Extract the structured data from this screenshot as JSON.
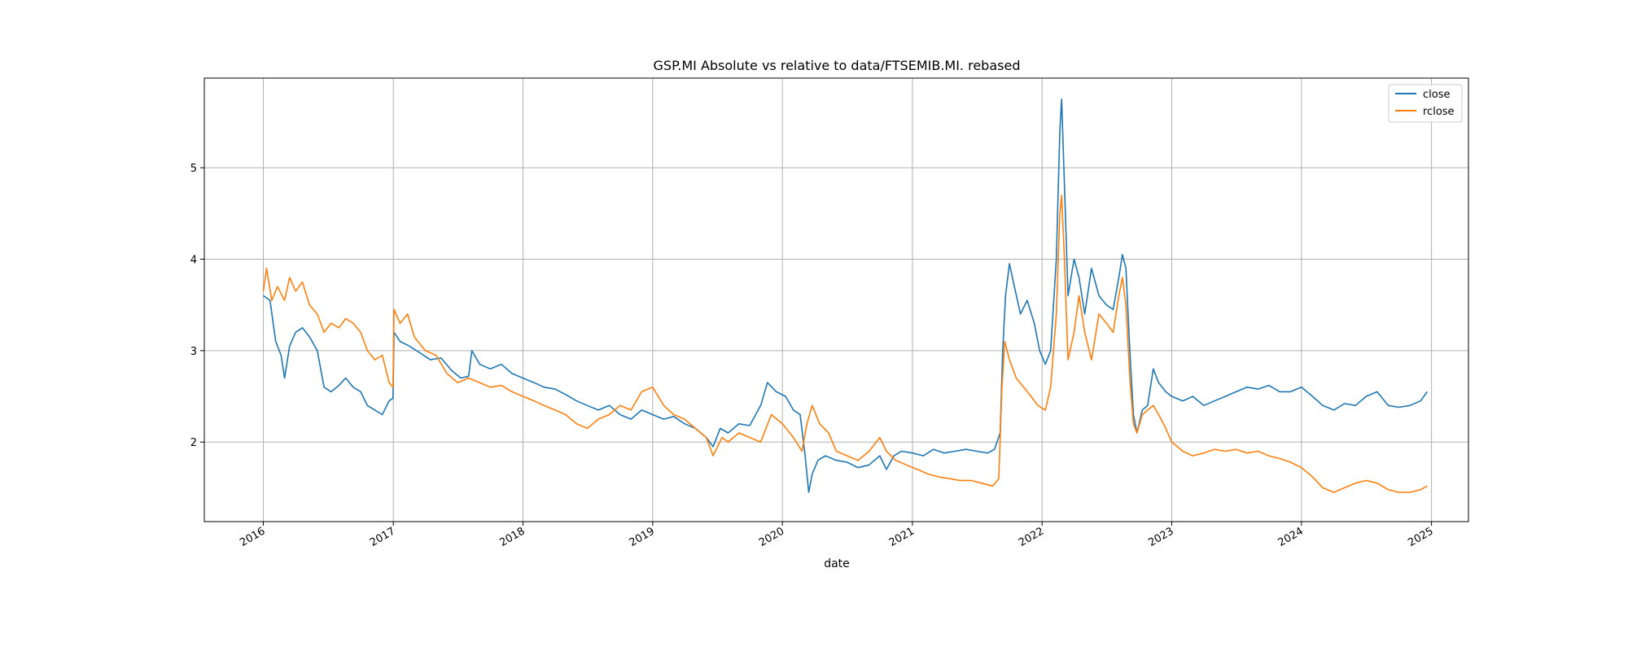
{
  "chart_data": {
    "type": "line",
    "title": "GSP.MI Absolute vs relative to data/FTSEMIB.MI. rebased",
    "xlabel": "date",
    "ylabel": "",
    "x_ticks": [
      "2016",
      "2017",
      "2018",
      "2019",
      "2020",
      "2021",
      "2022",
      "2023",
      "2024",
      "2025"
    ],
    "y_ticks": [
      "2",
      "3",
      "4",
      "5"
    ],
    "xlim": [
      "2015-07-19",
      "2025-04-15"
    ],
    "ylim": [
      1.13,
      5.98
    ],
    "grid": true,
    "legend_position": "top-right",
    "series": [
      {
        "name": "close",
        "color": "#1f77b4",
        "points": [
          [
            "2016-01-01",
            3.6
          ],
          [
            "2016-01-20",
            3.55
          ],
          [
            "2016-02-05",
            3.1
          ],
          [
            "2016-02-20",
            2.95
          ],
          [
            "2016-03-01",
            2.7
          ],
          [
            "2016-03-15",
            3.05
          ],
          [
            "2016-04-01",
            3.2
          ],
          [
            "2016-04-20",
            3.25
          ],
          [
            "2016-05-10",
            3.15
          ],
          [
            "2016-06-01",
            3.0
          ],
          [
            "2016-06-20",
            2.6
          ],
          [
            "2016-07-10",
            2.55
          ],
          [
            "2016-08-01",
            2.62
          ],
          [
            "2016-08-20",
            2.7
          ],
          [
            "2016-09-10",
            2.6
          ],
          [
            "2016-10-01",
            2.55
          ],
          [
            "2016-10-20",
            2.4
          ],
          [
            "2016-11-10",
            2.35
          ],
          [
            "2016-12-01",
            2.3
          ],
          [
            "2016-12-20",
            2.45
          ],
          [
            "2016-12-31",
            2.48
          ],
          [
            "2017-01-03",
            3.2
          ],
          [
            "2017-01-20",
            3.1
          ],
          [
            "2017-02-15",
            3.05
          ],
          [
            "2017-03-15",
            2.98
          ],
          [
            "2017-04-15",
            2.9
          ],
          [
            "2017-05-15",
            2.92
          ],
          [
            "2017-06-15",
            2.78
          ],
          [
            "2017-07-10",
            2.7
          ],
          [
            "2017-08-01",
            2.72
          ],
          [
            "2017-08-10",
            3.0
          ],
          [
            "2017-09-01",
            2.85
          ],
          [
            "2017-10-01",
            2.8
          ],
          [
            "2017-11-01",
            2.85
          ],
          [
            "2017-12-01",
            2.75
          ],
          [
            "2018-01-01",
            2.7
          ],
          [
            "2018-02-01",
            2.65
          ],
          [
            "2018-03-01",
            2.6
          ],
          [
            "2018-04-01",
            2.58
          ],
          [
            "2018-05-01",
            2.52
          ],
          [
            "2018-06-01",
            2.45
          ],
          [
            "2018-07-01",
            2.4
          ],
          [
            "2018-08-01",
            2.35
          ],
          [
            "2018-09-01",
            2.4
          ],
          [
            "2018-10-01",
            2.3
          ],
          [
            "2018-11-01",
            2.25
          ],
          [
            "2018-12-01",
            2.35
          ],
          [
            "2019-01-01",
            2.3
          ],
          [
            "2019-02-01",
            2.25
          ],
          [
            "2019-03-01",
            2.28
          ],
          [
            "2019-04-01",
            2.2
          ],
          [
            "2019-05-01",
            2.15
          ],
          [
            "2019-06-01",
            2.05
          ],
          [
            "2019-06-20",
            1.95
          ],
          [
            "2019-07-10",
            2.15
          ],
          [
            "2019-08-01",
            2.1
          ],
          [
            "2019-09-01",
            2.2
          ],
          [
            "2019-10-01",
            2.18
          ],
          [
            "2019-11-01",
            2.4
          ],
          [
            "2019-11-20",
            2.65
          ],
          [
            "2019-12-15",
            2.55
          ],
          [
            "2020-01-10",
            2.5
          ],
          [
            "2020-02-01",
            2.35
          ],
          [
            "2020-02-20",
            2.3
          ],
          [
            "2020-03-05",
            1.85
          ],
          [
            "2020-03-15",
            1.45
          ],
          [
            "2020-03-25",
            1.65
          ],
          [
            "2020-04-10",
            1.8
          ],
          [
            "2020-05-01",
            1.85
          ],
          [
            "2020-06-01",
            1.8
          ],
          [
            "2020-07-01",
            1.78
          ],
          [
            "2020-08-01",
            1.72
          ],
          [
            "2020-09-01",
            1.75
          ],
          [
            "2020-10-01",
            1.85
          ],
          [
            "2020-10-20",
            1.7
          ],
          [
            "2020-11-10",
            1.85
          ],
          [
            "2020-12-01",
            1.9
          ],
          [
            "2021-01-01",
            1.88
          ],
          [
            "2021-02-01",
            1.85
          ],
          [
            "2021-03-01",
            1.92
          ],
          [
            "2021-04-01",
            1.88
          ],
          [
            "2021-05-01",
            1.9
          ],
          [
            "2021-06-01",
            1.92
          ],
          [
            "2021-07-01",
            1.9
          ],
          [
            "2021-08-01",
            1.88
          ],
          [
            "2021-08-20",
            1.92
          ],
          [
            "2021-09-05",
            2.1
          ],
          [
            "2021-09-12",
            3.0
          ],
          [
            "2021-09-20",
            3.6
          ],
          [
            "2021-10-01",
            3.95
          ],
          [
            "2021-10-15",
            3.7
          ],
          [
            "2021-11-01",
            3.4
          ],
          [
            "2021-11-20",
            3.55
          ],
          [
            "2021-12-10",
            3.3
          ],
          [
            "2021-12-25",
            3.0
          ],
          [
            "2022-01-10",
            2.85
          ],
          [
            "2022-01-25",
            3.0
          ],
          [
            "2022-02-10",
            4.0
          ],
          [
            "2022-02-20",
            5.4
          ],
          [
            "2022-02-25",
            5.75
          ],
          [
            "2022-03-05",
            4.8
          ],
          [
            "2022-03-15",
            3.6
          ],
          [
            "2022-04-01",
            4.0
          ],
          [
            "2022-04-15",
            3.8
          ],
          [
            "2022-05-01",
            3.4
          ],
          [
            "2022-05-20",
            3.9
          ],
          [
            "2022-06-10",
            3.6
          ],
          [
            "2022-07-01",
            3.5
          ],
          [
            "2022-07-20",
            3.45
          ],
          [
            "2022-08-05",
            3.8
          ],
          [
            "2022-08-15",
            4.05
          ],
          [
            "2022-08-25",
            3.9
          ],
          [
            "2022-09-05",
            3.0
          ],
          [
            "2022-09-15",
            2.3
          ],
          [
            "2022-09-25",
            2.1
          ],
          [
            "2022-10-10",
            2.35
          ],
          [
            "2022-10-25",
            2.4
          ],
          [
            "2022-11-10",
            2.8
          ],
          [
            "2022-11-25",
            2.65
          ],
          [
            "2022-12-15",
            2.55
          ],
          [
            "2023-01-01",
            2.5
          ],
          [
            "2023-02-01",
            2.45
          ],
          [
            "2023-03-01",
            2.5
          ],
          [
            "2023-04-01",
            2.4
          ],
          [
            "2023-05-01",
            2.45
          ],
          [
            "2023-06-01",
            2.5
          ],
          [
            "2023-07-01",
            2.55
          ],
          [
            "2023-08-01",
            2.6
          ],
          [
            "2023-09-01",
            2.58
          ],
          [
            "2023-10-01",
            2.62
          ],
          [
            "2023-11-01",
            2.55
          ],
          [
            "2023-12-01",
            2.55
          ],
          [
            "2024-01-01",
            2.6
          ],
          [
            "2024-02-01",
            2.5
          ],
          [
            "2024-03-01",
            2.4
          ],
          [
            "2024-04-01",
            2.35
          ],
          [
            "2024-05-01",
            2.42
          ],
          [
            "2024-06-01",
            2.4
          ],
          [
            "2024-07-01",
            2.5
          ],
          [
            "2024-08-01",
            2.55
          ],
          [
            "2024-09-01",
            2.4
          ],
          [
            "2024-10-01",
            2.38
          ],
          [
            "2024-11-01",
            2.4
          ],
          [
            "2024-12-01",
            2.45
          ],
          [
            "2024-12-20",
            2.55
          ]
        ]
      },
      {
        "name": "rclose",
        "color": "#ff7f0e",
        "points": [
          [
            "2016-01-01",
            3.65
          ],
          [
            "2016-01-10",
            3.9
          ],
          [
            "2016-01-25",
            3.55
          ],
          [
            "2016-02-10",
            3.7
          ],
          [
            "2016-03-01",
            3.55
          ],
          [
            "2016-03-15",
            3.8
          ],
          [
            "2016-04-01",
            3.65
          ],
          [
            "2016-04-20",
            3.75
          ],
          [
            "2016-05-10",
            3.5
          ],
          [
            "2016-06-01",
            3.4
          ],
          [
            "2016-06-20",
            3.2
          ],
          [
            "2016-07-10",
            3.3
          ],
          [
            "2016-08-01",
            3.25
          ],
          [
            "2016-08-20",
            3.35
          ],
          [
            "2016-09-10",
            3.3
          ],
          [
            "2016-10-01",
            3.2
          ],
          [
            "2016-10-20",
            3.0
          ],
          [
            "2016-11-10",
            2.9
          ],
          [
            "2016-12-01",
            2.95
          ],
          [
            "2016-12-20",
            2.65
          ],
          [
            "2016-12-31",
            2.6
          ],
          [
            "2017-01-03",
            3.45
          ],
          [
            "2017-01-20",
            3.3
          ],
          [
            "2017-02-10",
            3.4
          ],
          [
            "2017-03-01",
            3.15
          ],
          [
            "2017-04-01",
            3.0
          ],
          [
            "2017-05-01",
            2.95
          ],
          [
            "2017-06-01",
            2.75
          ],
          [
            "2017-07-01",
            2.65
          ],
          [
            "2017-08-01",
            2.7
          ],
          [
            "2017-09-01",
            2.65
          ],
          [
            "2017-10-01",
            2.6
          ],
          [
            "2017-11-01",
            2.62
          ],
          [
            "2017-12-01",
            2.55
          ],
          [
            "2018-01-01",
            2.5
          ],
          [
            "2018-02-01",
            2.45
          ],
          [
            "2018-03-01",
            2.4
          ],
          [
            "2018-04-01",
            2.35
          ],
          [
            "2018-05-01",
            2.3
          ],
          [
            "2018-06-01",
            2.2
          ],
          [
            "2018-07-01",
            2.15
          ],
          [
            "2018-08-01",
            2.25
          ],
          [
            "2018-09-01",
            2.3
          ],
          [
            "2018-10-01",
            2.4
          ],
          [
            "2018-11-01",
            2.35
          ],
          [
            "2018-12-01",
            2.55
          ],
          [
            "2019-01-01",
            2.6
          ],
          [
            "2019-02-01",
            2.4
          ],
          [
            "2019-03-01",
            2.3
          ],
          [
            "2019-04-01",
            2.25
          ],
          [
            "2019-05-01",
            2.15
          ],
          [
            "2019-06-01",
            2.05
          ],
          [
            "2019-06-20",
            1.85
          ],
          [
            "2019-07-15",
            2.05
          ],
          [
            "2019-08-01",
            2.0
          ],
          [
            "2019-09-01",
            2.1
          ],
          [
            "2019-10-01",
            2.05
          ],
          [
            "2019-11-01",
            2.0
          ],
          [
            "2019-12-01",
            2.3
          ],
          [
            "2020-01-01",
            2.2
          ],
          [
            "2020-02-01",
            2.05
          ],
          [
            "2020-02-25",
            1.9
          ],
          [
            "2020-03-10",
            2.2
          ],
          [
            "2020-03-25",
            2.4
          ],
          [
            "2020-04-15",
            2.2
          ],
          [
            "2020-05-10",
            2.1
          ],
          [
            "2020-06-01",
            1.9
          ],
          [
            "2020-07-01",
            1.85
          ],
          [
            "2020-08-01",
            1.8
          ],
          [
            "2020-09-01",
            1.9
          ],
          [
            "2020-10-01",
            2.05
          ],
          [
            "2020-10-20",
            1.9
          ],
          [
            "2020-11-15",
            1.8
          ],
          [
            "2020-12-15",
            1.75
          ],
          [
            "2021-01-15",
            1.7
          ],
          [
            "2021-02-15",
            1.65
          ],
          [
            "2021-03-15",
            1.62
          ],
          [
            "2021-04-15",
            1.6
          ],
          [
            "2021-05-15",
            1.58
          ],
          [
            "2021-06-15",
            1.58
          ],
          [
            "2021-07-15",
            1.55
          ],
          [
            "2021-08-15",
            1.52
          ],
          [
            "2021-09-01",
            1.6
          ],
          [
            "2021-09-10",
            2.6
          ],
          [
            "2021-09-18",
            3.1
          ],
          [
            "2021-10-01",
            2.9
          ],
          [
            "2021-10-20",
            2.7
          ],
          [
            "2021-11-10",
            2.6
          ],
          [
            "2021-12-01",
            2.5
          ],
          [
            "2021-12-20",
            2.4
          ],
          [
            "2022-01-10",
            2.35
          ],
          [
            "2022-01-25",
            2.6
          ],
          [
            "2022-02-10",
            3.4
          ],
          [
            "2022-02-20",
            4.5
          ],
          [
            "2022-02-25",
            4.7
          ],
          [
            "2022-03-05",
            4.0
          ],
          [
            "2022-03-15",
            2.9
          ],
          [
            "2022-04-01",
            3.2
          ],
          [
            "2022-04-15",
            3.6
          ],
          [
            "2022-05-01",
            3.2
          ],
          [
            "2022-05-20",
            2.9
          ],
          [
            "2022-06-10",
            3.4
          ],
          [
            "2022-07-01",
            3.3
          ],
          [
            "2022-07-20",
            3.2
          ],
          [
            "2022-08-05",
            3.6
          ],
          [
            "2022-08-15",
            3.8
          ],
          [
            "2022-08-25",
            3.5
          ],
          [
            "2022-09-05",
            2.7
          ],
          [
            "2022-09-15",
            2.2
          ],
          [
            "2022-09-25",
            2.1
          ],
          [
            "2022-10-10",
            2.3
          ],
          [
            "2022-10-25",
            2.35
          ],
          [
            "2022-11-10",
            2.4
          ],
          [
            "2022-11-25",
            2.3
          ],
          [
            "2022-12-15",
            2.15
          ],
          [
            "2023-01-01",
            2.0
          ],
          [
            "2023-02-01",
            1.9
          ],
          [
            "2023-03-01",
            1.85
          ],
          [
            "2023-04-01",
            1.88
          ],
          [
            "2023-05-01",
            1.92
          ],
          [
            "2023-06-01",
            1.9
          ],
          [
            "2023-07-01",
            1.92
          ],
          [
            "2023-08-01",
            1.88
          ],
          [
            "2023-09-01",
            1.9
          ],
          [
            "2023-10-01",
            1.85
          ],
          [
            "2023-11-01",
            1.82
          ],
          [
            "2023-12-01",
            1.78
          ],
          [
            "2024-01-01",
            1.72
          ],
          [
            "2024-02-01",
            1.62
          ],
          [
            "2024-03-01",
            1.5
          ],
          [
            "2024-04-01",
            1.45
          ],
          [
            "2024-05-01",
            1.5
          ],
          [
            "2024-06-01",
            1.55
          ],
          [
            "2024-07-01",
            1.58
          ],
          [
            "2024-08-01",
            1.55
          ],
          [
            "2024-09-01",
            1.48
          ],
          [
            "2024-10-01",
            1.45
          ],
          [
            "2024-11-01",
            1.45
          ],
          [
            "2024-12-01",
            1.48
          ],
          [
            "2024-12-20",
            1.52
          ]
        ]
      }
    ]
  }
}
